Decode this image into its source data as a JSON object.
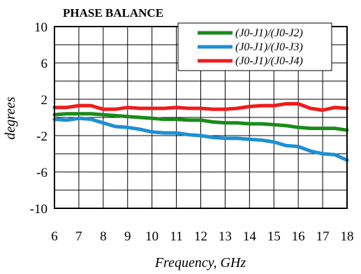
{
  "chart_data": {
    "type": "line",
    "title": "PHASE BALANCE",
    "xlabel": "Frequency, GHz",
    "ylabel": "degrees",
    "xlim": [
      6,
      18
    ],
    "ylim": [
      -10,
      10
    ],
    "x_ticks": [
      6,
      7,
      8,
      9,
      10,
      11,
      12,
      13,
      14,
      15,
      16,
      17,
      18
    ],
    "y_ticks": [
      10,
      6,
      2,
      -2,
      -6,
      -10
    ],
    "grid": true,
    "legend_position": "top-right",
    "x": [
      6,
      6.5,
      7,
      7.5,
      8,
      8.5,
      9,
      9.5,
      10,
      10.5,
      11,
      11.5,
      12,
      12.5,
      13,
      13.5,
      14,
      14.5,
      15,
      15.5,
      16,
      16.5,
      17,
      17.5,
      18
    ],
    "series": [
      {
        "name": "(J0-J1)/(J0-J2)",
        "color": "#1a8a1a",
        "values": [
          0.3,
          0.4,
          0.4,
          0.4,
          0.3,
          0.2,
          0.1,
          0.0,
          -0.1,
          -0.2,
          -0.2,
          -0.3,
          -0.3,
          -0.5,
          -0.6,
          -0.6,
          -0.7,
          -0.7,
          -0.8,
          -0.9,
          -1.1,
          -1.2,
          -1.2,
          -1.2,
          -1.4
        ]
      },
      {
        "name": "(J0-J1)/(J0-J3)",
        "color": "#1e8fd5",
        "values": [
          -0.2,
          -0.3,
          -0.1,
          -0.2,
          -0.6,
          -1.0,
          -1.1,
          -1.3,
          -1.6,
          -1.7,
          -1.7,
          -1.9,
          -2.0,
          -2.2,
          -2.3,
          -2.3,
          -2.4,
          -2.5,
          -2.7,
          -3.1,
          -3.2,
          -3.7,
          -4.0,
          -4.1,
          -4.7
        ]
      },
      {
        "name": "(J0-J1)/(J0-J4)",
        "color": "#ee1c1c",
        "values": [
          1.1,
          1.1,
          1.3,
          1.3,
          0.9,
          0.9,
          1.1,
          1.0,
          1.0,
          1.0,
          1.1,
          1.0,
          1.0,
          0.9,
          0.9,
          1.0,
          1.2,
          1.3,
          1.3,
          1.5,
          1.5,
          1.0,
          0.8,
          1.1,
          1.0
        ]
      }
    ]
  }
}
